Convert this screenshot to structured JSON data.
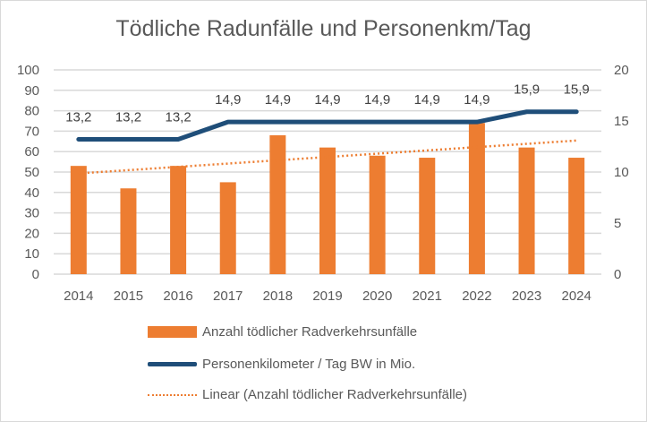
{
  "chart_data": {
    "type": "bar+line",
    "title": "Tödliche Radunfälle und Personenkm/Tag",
    "categories": [
      "2014",
      "2015",
      "2016",
      "2017",
      "2018",
      "2019",
      "2020",
      "2021",
      "2022",
      "2023",
      "2024"
    ],
    "series": [
      {
        "name": "Anzahl tödlicher Radverkehrsunfälle",
        "type": "bar",
        "axis": "left",
        "color": "#ED7D31",
        "values": [
          53,
          42,
          53,
          45,
          68,
          62,
          58,
          57,
          74,
          62,
          57
        ]
      },
      {
        "name": "Personenkilometer / Tag BW in Mio.",
        "type": "line",
        "axis": "right",
        "color": "#1F4E79",
        "values": [
          13.2,
          13.2,
          13.2,
          14.9,
          14.9,
          14.9,
          14.9,
          14.9,
          14.9,
          15.9,
          15.9
        ],
        "labels": [
          "13,2",
          "13,2",
          "13,2",
          "14,9",
          "14,9",
          "14,9",
          "14,9",
          "14,9",
          "14,9",
          "15,9",
          "15,9"
        ]
      },
      {
        "name": "Linear (Anzahl tödlicher Radverkehrsunfälle)",
        "type": "trendline",
        "axis": "left",
        "color": "#ED7D31"
      }
    ],
    "y_left": {
      "ylim": [
        0,
        100
      ],
      "ticks": [
        "0",
        "10",
        "20",
        "30",
        "40",
        "50",
        "60",
        "70",
        "80",
        "90",
        "100"
      ]
    },
    "y_right": {
      "ylim": [
        0,
        20
      ],
      "ticks": [
        "0",
        "5",
        "10",
        "15",
        "20"
      ]
    },
    "grid": true,
    "legend_position": "bottom"
  }
}
